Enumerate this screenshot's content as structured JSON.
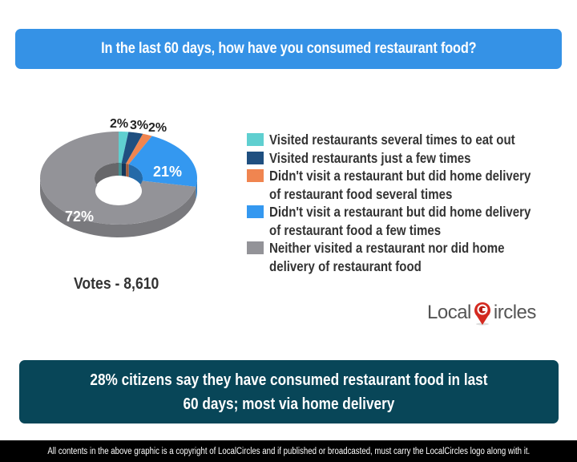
{
  "header": {
    "title": "In the last 60 days, how have you consumed restaurant food?"
  },
  "chart_data": {
    "type": "pie",
    "title": "In the last 60 days, how have you consumed restaurant food?",
    "style": "3d-donut",
    "categories": [
      "Visited restaurants several times to eat out",
      "Visited restaurants just a few times",
      "Didn't visit a restaurant but did home delivery of restaurant food several times",
      "Didn't visit a restaurant but did home delivery of restaurant food a few times",
      "Neither visited a restaurant nor did home delivery of restaurant food"
    ],
    "values": [
      2,
      3,
      2,
      21,
      72
    ],
    "labels": [
      "2%",
      "3%",
      "2%",
      "21%",
      "72%"
    ],
    "colors": [
      "#5fcfd0",
      "#1f4f80",
      "#f08550",
      "#3498f0",
      "#939398"
    ],
    "legend_position": "right",
    "votes": "Votes - 8,610"
  },
  "legend": [
    {
      "lines": [
        "Visited restaurants several times to eat out"
      ],
      "color": "#5fcfd0"
    },
    {
      "lines": [
        "Visited restaurants just a few times"
      ],
      "color": "#1f4f80"
    },
    {
      "lines": [
        "Didn't visit a restaurant but did home delivery",
        "of restaurant food several times"
      ],
      "color": "#f08550"
    },
    {
      "lines": [
        "Didn't visit a restaurant but did home delivery",
        "of restaurant food a few times"
      ],
      "color": "#3498f0"
    },
    {
      "lines": [
        "Neither visited a restaurant nor did home",
        "delivery of restaurant food"
      ],
      "color": "#939398"
    }
  ],
  "votes": "Votes - 8,610",
  "logo": {
    "left": "Local",
    "right": "ircles"
  },
  "summary": {
    "line1": "28% citizens say they have consumed restaurant food in last",
    "line2": "60 days; most via home delivery"
  },
  "footer": "All contents in the above graphic is a copyright of LocalCircles and if published or broadcasted, must carry the LocalCircles logo along with it."
}
